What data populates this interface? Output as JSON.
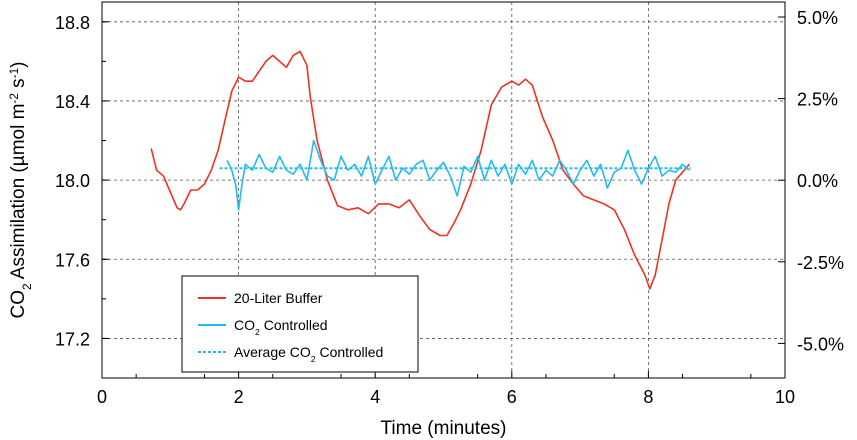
{
  "chart_data": {
    "type": "line",
    "title": "",
    "xlabel": "Time (minutes)",
    "ylabel_parts": [
      "CO",
      "2",
      " Assimilation (µmol m",
      "-2",
      " s",
      "-1",
      ")"
    ],
    "y2label": "",
    "xlim": [
      0,
      10
    ],
    "ylim": [
      17.0,
      18.9
    ],
    "y2lim": [
      -6.06,
      5.46
    ],
    "x_ticks": [
      0,
      2,
      4,
      6,
      8,
      10
    ],
    "x_tick_labels": [
      "0",
      "2",
      "4",
      "6",
      "8",
      "10"
    ],
    "y_ticks": [
      17.2,
      17.6,
      18.0,
      18.4,
      18.8
    ],
    "y_tick_labels": [
      "17.2",
      "17.6",
      "18.0",
      "18.4",
      "18.8"
    ],
    "y2_ticks": [
      -5.0,
      -2.5,
      0.0,
      2.5,
      5.0
    ],
    "y2_tick_labels": [
      "-5.0%",
      "-2.5%",
      "0.0%",
      "2.5%",
      "5.0%"
    ],
    "grid": true,
    "legend_position": "bottom-left",
    "series": [
      {
        "name": "20-Liter Buffer",
        "color": "#ee3322",
        "style": "solid",
        "x": [
          0.72,
          0.8,
          0.9,
          1.0,
          1.1,
          1.15,
          1.2,
          1.3,
          1.4,
          1.5,
          1.6,
          1.7,
          1.8,
          1.9,
          2.0,
          2.1,
          2.2,
          2.3,
          2.4,
          2.5,
          2.6,
          2.7,
          2.8,
          2.9,
          3.0,
          3.05,
          3.15,
          3.3,
          3.45,
          3.6,
          3.75,
          3.9,
          4.05,
          4.2,
          4.35,
          4.5,
          4.65,
          4.8,
          4.95,
          5.05,
          5.15,
          5.25,
          5.4,
          5.55,
          5.7,
          5.85,
          6.0,
          6.1,
          6.2,
          6.3,
          6.45,
          6.6,
          6.75,
          6.9,
          7.05,
          7.2,
          7.35,
          7.5,
          7.65,
          7.8,
          7.95,
          8.02,
          8.1,
          8.2,
          8.3,
          8.4,
          8.5,
          8.6
        ],
        "y": [
          18.16,
          18.05,
          18.02,
          17.94,
          17.86,
          17.85,
          17.88,
          17.95,
          17.95,
          17.98,
          18.05,
          18.15,
          18.3,
          18.45,
          18.52,
          18.5,
          18.5,
          18.55,
          18.6,
          18.63,
          18.6,
          18.57,
          18.63,
          18.65,
          18.58,
          18.42,
          18.2,
          18.0,
          17.87,
          17.85,
          17.86,
          17.83,
          17.88,
          17.88,
          17.86,
          17.9,
          17.82,
          17.75,
          17.72,
          17.72,
          17.78,
          17.85,
          17.98,
          18.15,
          18.38,
          18.47,
          18.5,
          18.48,
          18.51,
          18.48,
          18.32,
          18.2,
          18.05,
          17.98,
          17.92,
          17.9,
          17.88,
          17.85,
          17.75,
          17.62,
          17.52,
          17.45,
          17.52,
          17.7,
          17.88,
          18.0,
          18.04,
          18.08
        ]
      },
      {
        "name": "CO2 Controlled",
        "color": "#22bbee",
        "style": "solid",
        "x": [
          1.83,
          1.9,
          1.96,
          2.0,
          2.05,
          2.1,
          2.2,
          2.3,
          2.4,
          2.5,
          2.6,
          2.7,
          2.8,
          2.9,
          3.0,
          3.1,
          3.2,
          3.3,
          3.4,
          3.5,
          3.6,
          3.7,
          3.8,
          3.9,
          4.0,
          4.1,
          4.2,
          4.3,
          4.4,
          4.5,
          4.6,
          4.7,
          4.8,
          4.9,
          5.0,
          5.1,
          5.2,
          5.3,
          5.4,
          5.5,
          5.6,
          5.7,
          5.8,
          5.9,
          6.0,
          6.1,
          6.2,
          6.3,
          6.4,
          6.5,
          6.6,
          6.7,
          6.8,
          6.9,
          7.0,
          7.1,
          7.2,
          7.3,
          7.4,
          7.5,
          7.6,
          7.7,
          7.8,
          7.9,
          8.0,
          8.1,
          8.2,
          8.3,
          8.4,
          8.5,
          8.6
        ],
        "y": [
          18.1,
          18.05,
          17.97,
          17.85,
          17.98,
          18.08,
          18.05,
          18.13,
          18.06,
          18.04,
          18.12,
          18.05,
          18.03,
          18.08,
          18.0,
          18.2,
          18.1,
          18.02,
          18.0,
          18.12,
          18.05,
          18.08,
          18.02,
          18.12,
          17.98,
          18.05,
          18.12,
          18.0,
          18.06,
          18.03,
          18.08,
          18.1,
          18.0,
          18.05,
          18.09,
          18.02,
          17.92,
          18.07,
          18.04,
          18.12,
          18.0,
          18.1,
          18.02,
          18.08,
          17.98,
          18.08,
          18.03,
          18.1,
          18.0,
          18.05,
          18.02,
          18.1,
          18.05,
          17.98,
          18.05,
          18.1,
          18.02,
          18.08,
          17.96,
          18.04,
          18.06,
          18.15,
          18.05,
          17.98,
          18.06,
          18.12,
          18.02,
          18.05,
          18.04,
          18.08,
          18.05
        ]
      },
      {
        "name": "Average CO2 Controlled",
        "color": "#22bbee",
        "style": "dashed",
        "x": [
          1.72,
          8.62
        ],
        "y": [
          18.06,
          18.06
        ]
      }
    ],
    "legend": [
      {
        "parts": [
          "20-Liter Buffer"
        ],
        "color": "#ee3322",
        "style": "solid"
      },
      {
        "parts": [
          "CO",
          "2",
          " Controlled"
        ],
        "color": "#22bbee",
        "style": "solid"
      },
      {
        "parts": [
          "Average CO",
          "2",
          " Controlled"
        ],
        "color": "#22bbee",
        "style": "dashed"
      }
    ]
  }
}
